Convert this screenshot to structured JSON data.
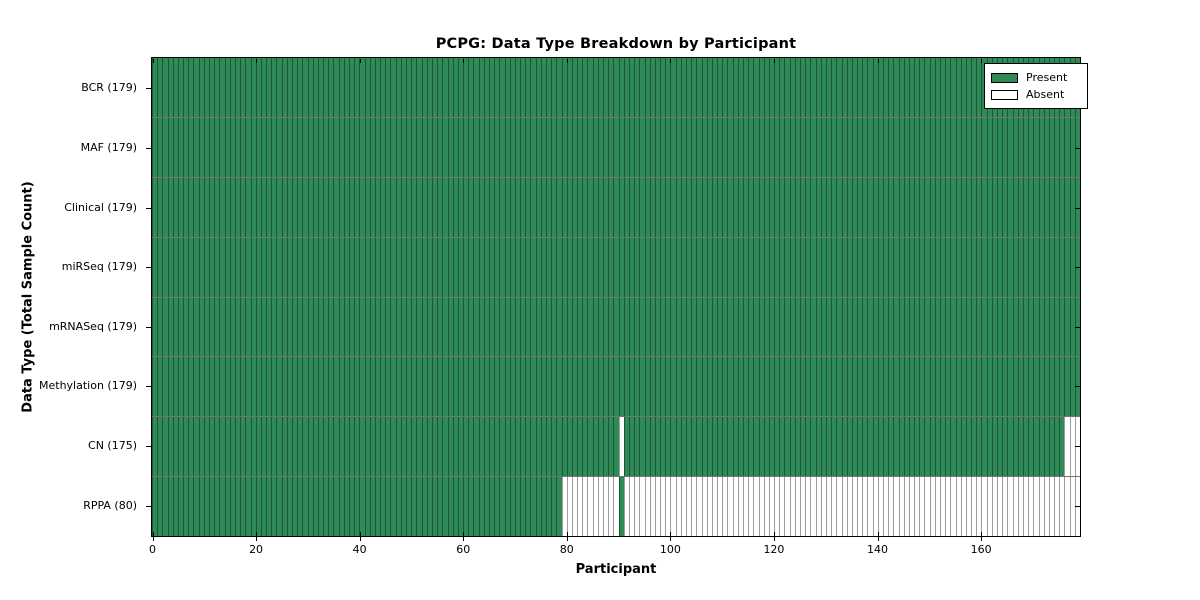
{
  "colors": {
    "present": "#2e8b57",
    "absent": "#ffffff",
    "bar_edge": "rgba(0,0,0,0.38)",
    "row_divider": "rgba(0,0,0,0.55)",
    "axis": "#000000"
  },
  "chart_data": {
    "type": "heatmap",
    "title": "PCPG: Data Type Breakdown by Participant",
    "xlabel": "Participant",
    "ylabel": "Data Type (Total Sample Count)",
    "n_participants": 179,
    "x_range": [
      0,
      179
    ],
    "x_ticks": [
      0,
      20,
      40,
      60,
      80,
      100,
      120,
      140,
      160
    ],
    "legend_position": "upper right",
    "grid": false,
    "legend": [
      {
        "label": "Present",
        "color": "#2e8b57"
      },
      {
        "label": "Absent",
        "color": "#ffffff"
      }
    ],
    "rows": [
      {
        "label": "BCR (179)",
        "data_type": "BCR",
        "present_count": 179,
        "absent_ranges": []
      },
      {
        "label": "MAF (179)",
        "data_type": "MAF",
        "present_count": 179,
        "absent_ranges": []
      },
      {
        "label": "Clinical (179)",
        "data_type": "Clinical",
        "present_count": 179,
        "absent_ranges": []
      },
      {
        "label": "miRSeq (179)",
        "data_type": "miRSeq",
        "present_count": 179,
        "absent_ranges": []
      },
      {
        "label": "mRNASeq (179)",
        "data_type": "mRNASeq",
        "present_count": 179,
        "absent_ranges": []
      },
      {
        "label": "Methylation (179)",
        "data_type": "Methylation",
        "present_count": 179,
        "absent_ranges": []
      },
      {
        "label": "CN (175)",
        "data_type": "CN",
        "present_count": 175,
        "absent_ranges": [
          [
            90,
            90
          ],
          [
            176,
            178
          ]
        ]
      },
      {
        "label": "RPPA (80)",
        "data_type": "RPPA",
        "present_count": 80,
        "absent_ranges": [
          [
            79,
            89
          ],
          [
            91,
            178
          ]
        ]
      }
    ]
  }
}
